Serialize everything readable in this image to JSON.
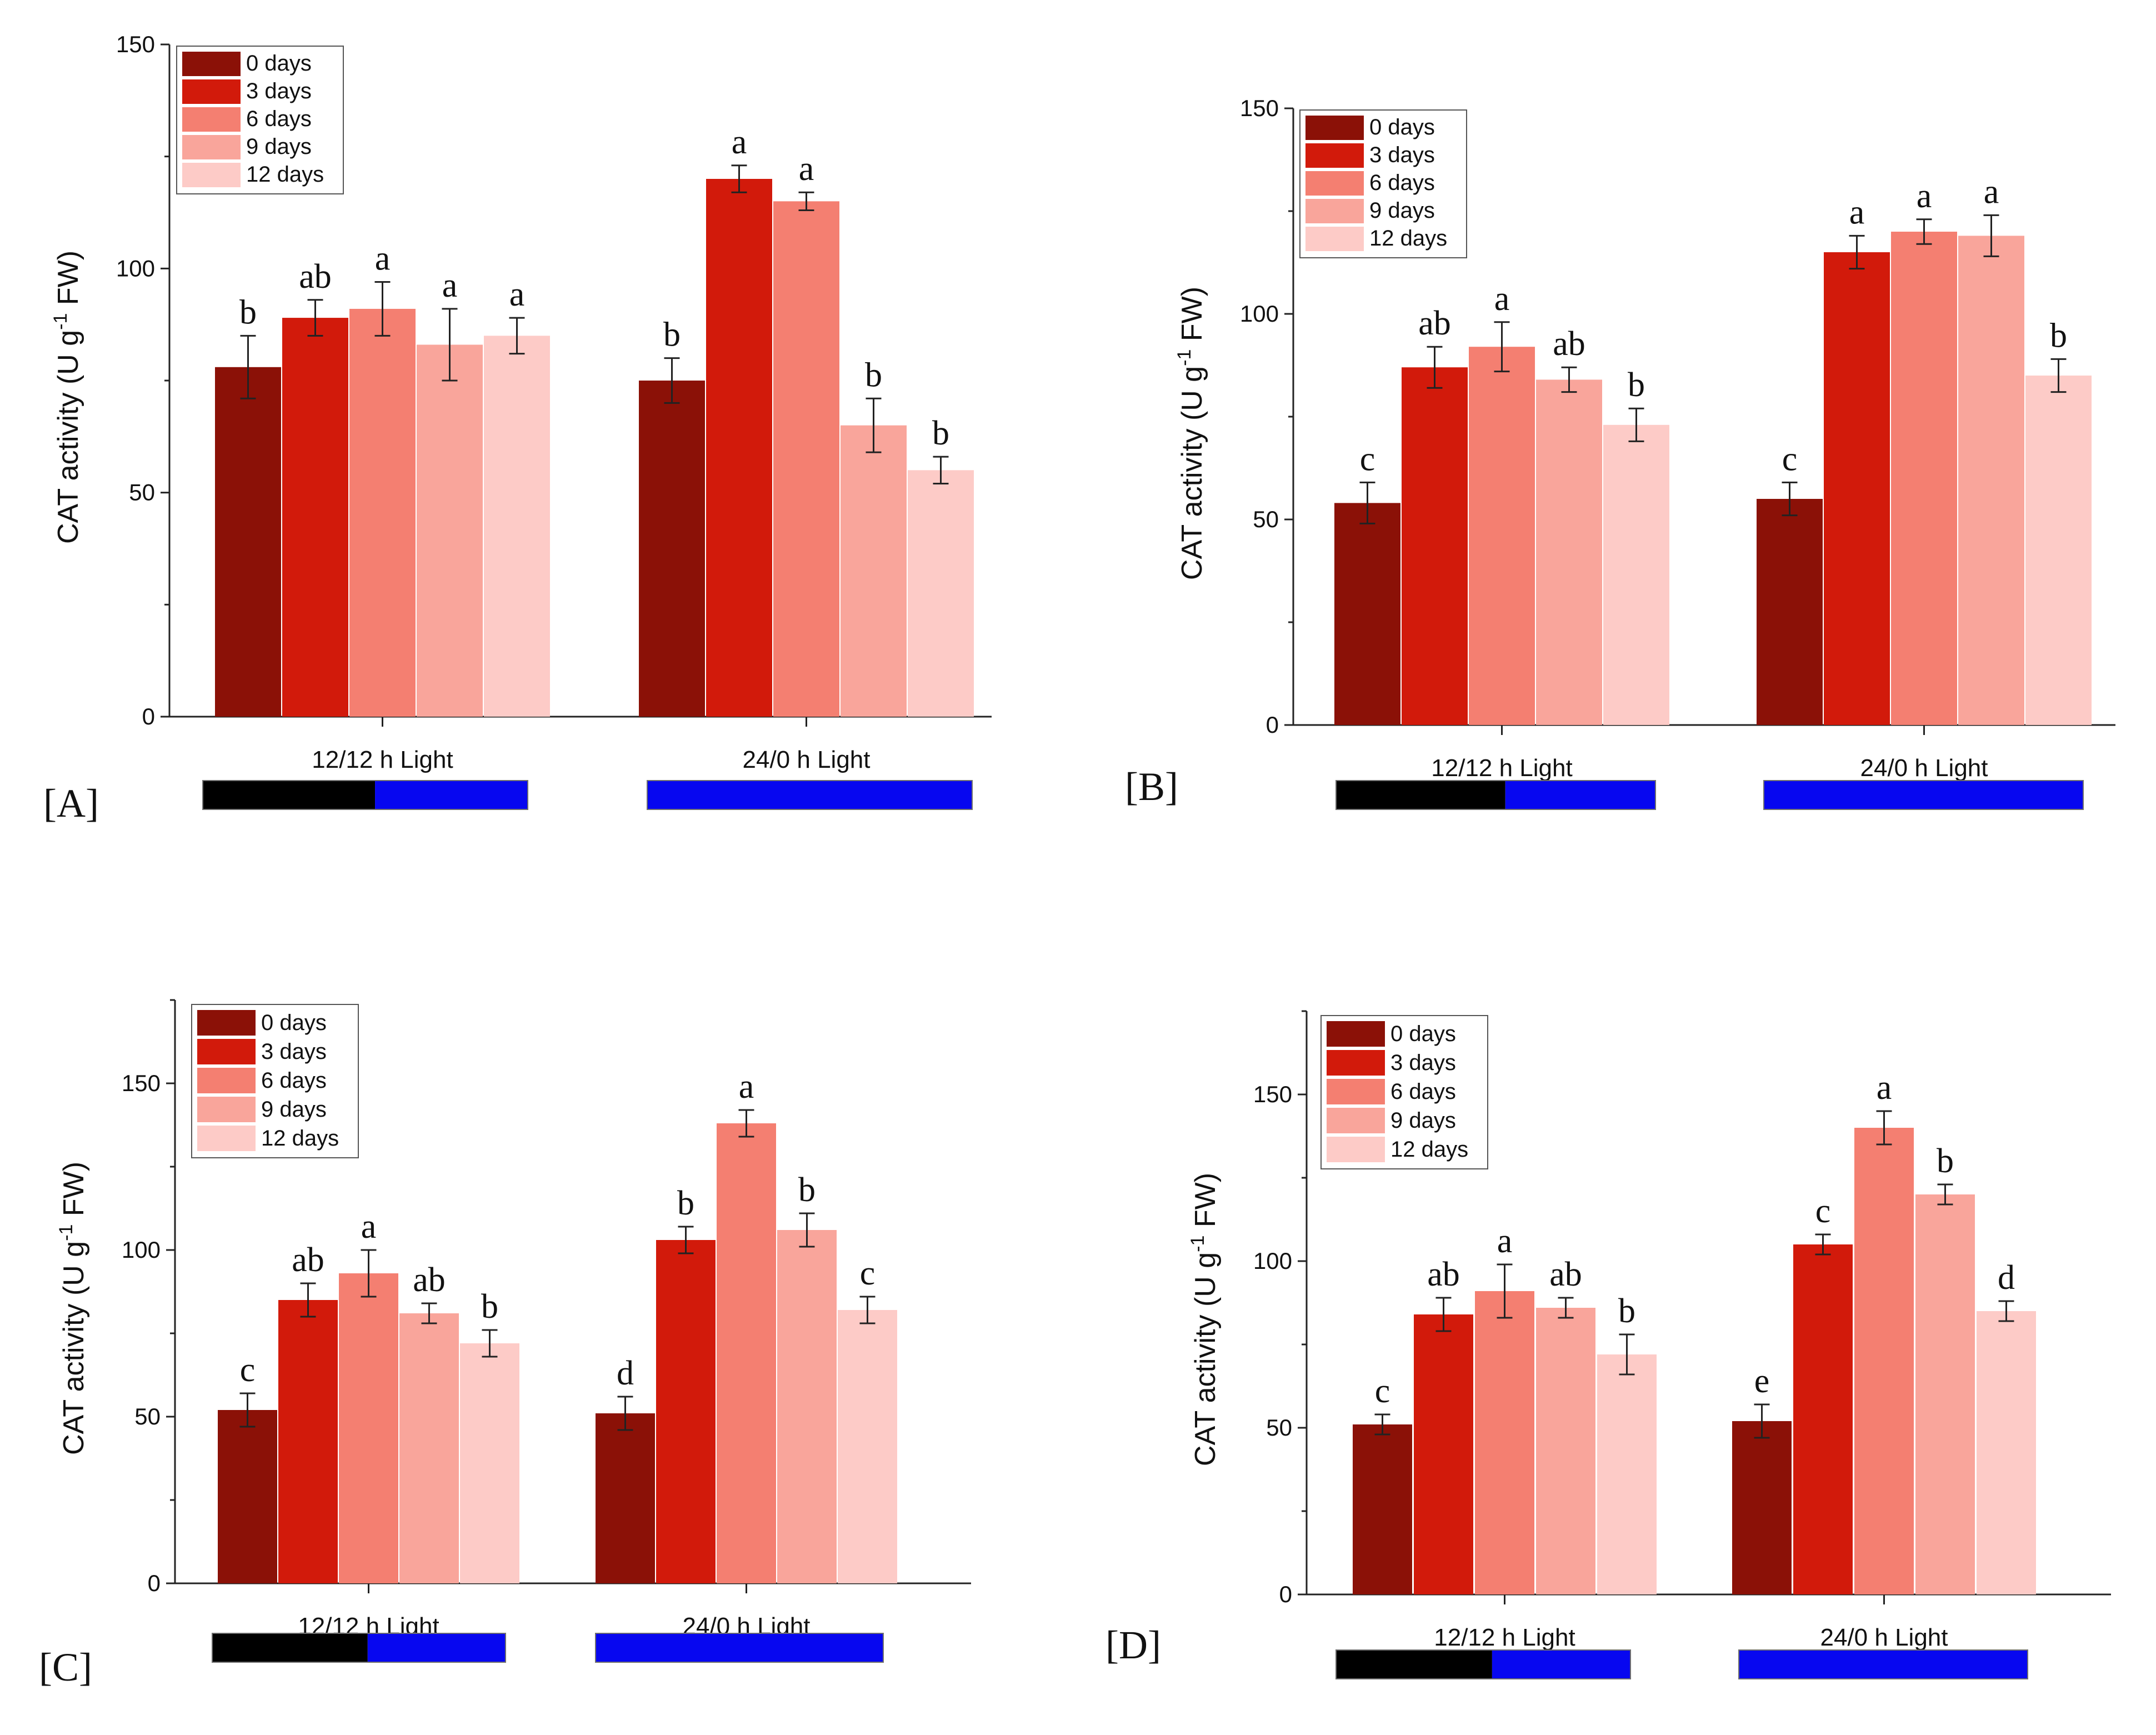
{
  "figure": {
    "palette": {
      "0 days": "#8B1107",
      "3 days": "#D21A0B",
      "6 days": "#F47F71",
      "9 days": "#F9A59B",
      "12 days": "#FDCBC7",
      "light_bar_on": "#0707F0",
      "light_bar_off": "#000000"
    }
  },
  "chart_data": [
    {
      "type": "bar",
      "panel_label": "[A]",
      "ylabel": "CAT activity (U g-1 FW)",
      "ylabel_parts": {
        "prefix": "CAT activity (U g",
        "superscript": "-1",
        "suffix": " FW)"
      },
      "ylim": [
        0,
        150
      ],
      "yticks": [
        0,
        50,
        100,
        150
      ],
      "categories": [
        "12/12 h Light",
        "24/0 h Light"
      ],
      "legend": [
        "0 days",
        "3 days",
        "6 days",
        "9 days",
        "12 days"
      ],
      "legend_position": "top-left",
      "series": [
        {
          "name": "0 days",
          "values": [
            78,
            75
          ],
          "errors": [
            7,
            5
          ],
          "letters": [
            "b",
            "b"
          ]
        },
        {
          "name": "3 days",
          "values": [
            89,
            120
          ],
          "errors": [
            4,
            3
          ],
          "letters": [
            "ab",
            "a"
          ]
        },
        {
          "name": "6 days",
          "values": [
            91,
            115
          ],
          "errors": [
            6,
            2
          ],
          "letters": [
            "a",
            "a"
          ]
        },
        {
          "name": "9 days",
          "values": [
            83,
            65
          ],
          "errors": [
            8,
            6
          ],
          "letters": [
            "a",
            "b"
          ]
        },
        {
          "name": "12 days",
          "values": [
            85,
            55
          ],
          "errors": [
            4,
            3
          ],
          "letters": [
            "a",
            "b"
          ]
        }
      ],
      "light_bars": [
        "12/12",
        "24/0"
      ]
    },
    {
      "type": "bar",
      "panel_label": "[B]",
      "ylabel": "CAT activity (U g-1 FW)",
      "ylabel_parts": {
        "prefix": "CAT activity (U g",
        "superscript": "-1",
        "suffix": " FW)"
      },
      "ylim": [
        0,
        150
      ],
      "yticks": [
        0,
        50,
        100,
        150
      ],
      "categories": [
        "12/12 h Light",
        "24/0 h Light"
      ],
      "legend": [
        "0 days",
        "3 days",
        "6 days",
        "9 days",
        "12 days"
      ],
      "legend_position": "top-left",
      "series": [
        {
          "name": "0 days",
          "values": [
            54,
            55
          ],
          "errors": [
            5,
            4
          ],
          "letters": [
            "c",
            "c"
          ]
        },
        {
          "name": "3 days",
          "values": [
            87,
            115
          ],
          "errors": [
            5,
            4
          ],
          "letters": [
            "ab",
            "a"
          ]
        },
        {
          "name": "6 days",
          "values": [
            92,
            120
          ],
          "errors": [
            6,
            3
          ],
          "letters": [
            "a",
            "a"
          ]
        },
        {
          "name": "9 days",
          "values": [
            84,
            119
          ],
          "errors": [
            3,
            5
          ],
          "letters": [
            "ab",
            "a"
          ]
        },
        {
          "name": "12 days",
          "values": [
            73,
            85
          ],
          "errors": [
            4,
            4
          ],
          "letters": [
            "b",
            "b"
          ]
        }
      ],
      "light_bars": [
        "12/12",
        "24/0"
      ]
    },
    {
      "type": "bar",
      "panel_label": "[C]",
      "ylabel": "CAT activity (U g-1 FW)",
      "ylabel_parts": {
        "prefix": "CAT activity (U g",
        "superscript": "-1",
        "suffix": " FW)"
      },
      "ylim": [
        0,
        175
      ],
      "yticks": [
        0,
        50,
        100,
        150
      ],
      "categories": [
        "12/12 h Light",
        "24/0 h Light"
      ],
      "legend": [
        "0 days",
        "3 days",
        "6 days",
        "9 days",
        "12 days"
      ],
      "legend_position": "top-left",
      "series": [
        {
          "name": "0 days",
          "values": [
            52,
            51
          ],
          "errors": [
            5,
            5
          ],
          "letters": [
            "c",
            "d"
          ]
        },
        {
          "name": "3 days",
          "values": [
            85,
            103
          ],
          "errors": [
            5,
            4
          ],
          "letters": [
            "ab",
            "b"
          ]
        },
        {
          "name": "6 days",
          "values": [
            93,
            138
          ],
          "errors": [
            7,
            4
          ],
          "letters": [
            "a",
            "a"
          ]
        },
        {
          "name": "9 days",
          "values": [
            81,
            106
          ],
          "errors": [
            3,
            5
          ],
          "letters": [
            "ab",
            "b"
          ]
        },
        {
          "name": "12 days",
          "values": [
            72,
            82
          ],
          "errors": [
            4,
            4
          ],
          "letters": [
            "b",
            "c"
          ]
        }
      ],
      "light_bars": [
        "12/12",
        "24/0"
      ]
    },
    {
      "type": "bar",
      "panel_label": "[D]",
      "ylabel": "CAT activity (U g-1 FW)",
      "ylabel_parts": {
        "prefix": "CAT activity (U g",
        "superscript": "-1",
        "suffix": " FW)"
      },
      "ylim": [
        0,
        175
      ],
      "yticks": [
        0,
        50,
        100,
        150
      ],
      "categories": [
        "12/12 h Light",
        "24/0 h Light"
      ],
      "legend": [
        "0 days",
        "3 days",
        "6 days",
        "9 days",
        "12 days"
      ],
      "legend_position": "top-left",
      "series": [
        {
          "name": "0 days",
          "values": [
            51,
            52
          ],
          "errors": [
            3,
            5
          ],
          "letters": [
            "c",
            "e"
          ]
        },
        {
          "name": "3 days",
          "values": [
            84,
            105
          ],
          "errors": [
            5,
            3
          ],
          "letters": [
            "ab",
            "c"
          ]
        },
        {
          "name": "6 days",
          "values": [
            91,
            140
          ],
          "errors": [
            8,
            5
          ],
          "letters": [
            "a",
            "a"
          ]
        },
        {
          "name": "9 days",
          "values": [
            86,
            120
          ],
          "errors": [
            3,
            3
          ],
          "letters": [
            "ab",
            "b"
          ]
        },
        {
          "name": "12 days",
          "values": [
            72,
            85
          ],
          "errors": [
            6,
            3
          ],
          "letters": [
            "b",
            "d"
          ]
        }
      ],
      "light_bars": [
        "12/12",
        "24/0"
      ]
    }
  ]
}
